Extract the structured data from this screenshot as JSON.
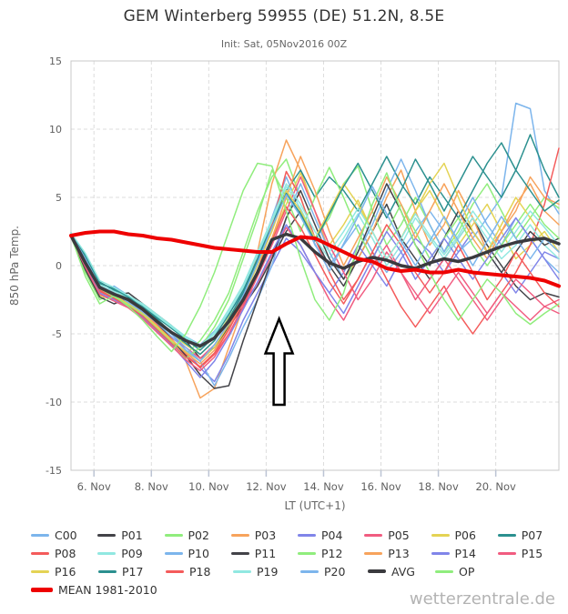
{
  "header": {
    "title": "GEM Winterberg 59955 (DE) 51.2N, 8.5E",
    "subtitle": "Init: Sat, 05Nov2016 00Z"
  },
  "watermark": "wetterzentrale.de",
  "legend": {
    "rows": [
      [
        "C00",
        "P01",
        "P02",
        "P03",
        "P04",
        "P05",
        "P06",
        "P07"
      ],
      [
        "P08",
        "P09",
        "P10",
        "P11",
        "P12",
        "P13",
        "P14",
        "P15"
      ],
      [
        "P16",
        "P17",
        "P18",
        "P19",
        "P20",
        "AVG",
        "OP"
      ],
      [
        "MEAN 1981-2010"
      ]
    ]
  },
  "chart_data": {
    "type": "line",
    "title": "GEM Winterberg 59955 (DE) 51.2N, 8.5E",
    "subtitle": "Init: Sat, 05Nov2016 00Z",
    "xlabel": "LT (UTC+1)",
    "ylabel": "850 hPa Temp.",
    "ylim": [
      -15,
      15
    ],
    "y_ticks": [
      15,
      10,
      5,
      0,
      -5,
      -10,
      -15
    ],
    "x_ticks": [
      {
        "day": 1,
        "label": "6. Nov"
      },
      {
        "day": 3,
        "label": "8. Nov"
      },
      {
        "day": 5,
        "label": "10. Nov"
      },
      {
        "day": 7,
        "label": "12. Nov"
      },
      {
        "day": 9,
        "label": "14. Nov"
      },
      {
        "day": 11,
        "label": "16. Nov"
      },
      {
        "day": 13,
        "label": "18. Nov"
      },
      {
        "day": 15,
        "label": "20. Nov"
      }
    ],
    "grid": true,
    "legend_position": "bottom",
    "x_days": [
      0.2,
      0.7,
      1.2,
      1.7,
      2.2,
      2.7,
      3.2,
      3.7,
      4.2,
      4.7,
      5.2,
      5.7,
      6.2,
      6.7,
      7.2,
      7.7,
      8.2,
      8.7,
      9.2,
      9.7,
      10.2,
      10.7,
      11.2,
      11.7,
      12.2,
      12.7,
      13.2,
      13.7,
      14.2,
      14.7,
      15.2,
      15.7,
      16.2,
      16.7,
      17.2
    ],
    "annotation": {
      "shape": "up-arrow",
      "x_day": 7.45,
      "tip_temp": -3.9,
      "base_temp": -10.2,
      "fill": "#ffffff",
      "stroke": "#000000"
    },
    "series": [
      {
        "name": "C00",
        "color": "#7cb5ec",
        "width": 1.5,
        "values": [
          2.3,
          0.0,
          -2.0,
          -1.5,
          -2.2,
          -3.0,
          -3.8,
          -4.5,
          -5.2,
          -5.8,
          -4.8,
          -3.5,
          -2.0,
          0.5,
          3.5,
          6.5,
          4.0,
          1.5,
          0.0,
          1.5,
          3.0,
          1.0,
          -0.5,
          1.0,
          2.5,
          4.0,
          2.5,
          1.0,
          2.0,
          3.5,
          5.0,
          11.9,
          11.5,
          5.5,
          3.8
        ]
      },
      {
        "name": "P01",
        "color": "#434348",
        "width": 1.5,
        "values": [
          2.2,
          0.2,
          -1.8,
          -2.2,
          -2.0,
          -2.8,
          -3.6,
          -4.4,
          -5.5,
          -6.8,
          -6.0,
          -4.5,
          -3.0,
          -1.5,
          0.5,
          2.5,
          4.0,
          2.0,
          0.0,
          -1.5,
          0.5,
          2.5,
          4.5,
          2.0,
          0.5,
          -1.0,
          0.5,
          2.0,
          3.5,
          1.5,
          0.0,
          -1.5,
          -2.5,
          -2.0,
          -2.3
        ]
      },
      {
        "name": "P02",
        "color": "#90ed7d",
        "width": 1.5,
        "values": [
          2.1,
          -0.5,
          -2.5,
          -2.0,
          -2.8,
          -3.5,
          -4.5,
          -5.5,
          -6.5,
          -5.5,
          -4.0,
          -2.0,
          1.0,
          4.0,
          6.5,
          7.8,
          5.0,
          2.0,
          3.5,
          6.0,
          7.3,
          4.0,
          1.5,
          3.0,
          5.0,
          3.0,
          1.0,
          2.5,
          4.5,
          6.0,
          4.0,
          2.0,
          3.5,
          5.0,
          4.2
        ]
      },
      {
        "name": "P03",
        "color": "#f7a35c",
        "width": 1.5,
        "values": [
          2.2,
          0.0,
          -2.2,
          -1.8,
          -2.5,
          -3.2,
          -4.2,
          -5.5,
          -7.0,
          -9.7,
          -9.0,
          -6.0,
          -3.0,
          1.0,
          6.0,
          9.2,
          7.0,
          4.0,
          1.0,
          -1.0,
          0.5,
          2.5,
          5.0,
          7.0,
          4.0,
          1.5,
          3.0,
          5.5,
          3.5,
          1.0,
          2.5,
          4.0,
          6.5,
          5.0,
          4.5
        ]
      },
      {
        "name": "P04",
        "color": "#8085e9",
        "width": 1.5,
        "values": [
          2.3,
          0.5,
          -1.5,
          -2.0,
          -2.5,
          -3.0,
          -4.0,
          -5.0,
          -6.2,
          -7.5,
          -8.5,
          -6.5,
          -4.0,
          -2.0,
          0.0,
          2.0,
          1.0,
          -0.5,
          -2.0,
          -0.5,
          1.5,
          0.0,
          -1.5,
          0.5,
          2.0,
          1.0,
          -0.5,
          1.0,
          2.5,
          1.0,
          -0.5,
          -2.0,
          -0.5,
          1.0,
          0.5
        ]
      },
      {
        "name": "P05",
        "color": "#f15c80",
        "width": 1.5,
        "values": [
          2.2,
          0.3,
          -1.7,
          -2.3,
          -2.7,
          -3.3,
          -4.3,
          -5.3,
          -6.0,
          -6.8,
          -5.8,
          -4.3,
          -2.8,
          -1.3,
          0.8,
          2.8,
          1.5,
          -0.5,
          -2.5,
          -4.0,
          -2.0,
          0.0,
          1.5,
          -0.5,
          -2.5,
          -1.0,
          0.5,
          -1.0,
          -2.5,
          -4.0,
          -2.5,
          -1.0,
          -2.0,
          -3.0,
          -2.5
        ]
      },
      {
        "name": "P06",
        "color": "#e4d354",
        "width": 1.5,
        "values": [
          2.1,
          -0.2,
          -2.2,
          -2.5,
          -2.2,
          -3.0,
          -4.0,
          -5.0,
          -5.8,
          -6.5,
          -5.5,
          -3.8,
          -2.2,
          -0.5,
          2.0,
          4.5,
          6.8,
          4.0,
          1.5,
          3.0,
          4.8,
          2.5,
          0.5,
          2.0,
          4.0,
          5.5,
          3.5,
          1.5,
          3.0,
          4.5,
          2.5,
          0.5,
          1.5,
          2.5,
          1.0
        ]
      },
      {
        "name": "P07",
        "color": "#2b908f",
        "width": 1.5,
        "values": [
          2.4,
          0.8,
          -1.2,
          -1.8,
          -2.4,
          -3.0,
          -3.8,
          -4.6,
          -5.4,
          -6.2,
          -5.2,
          -3.6,
          -1.8,
          0.5,
          3.0,
          5.5,
          7.0,
          5.0,
          6.5,
          5.5,
          4.0,
          6.0,
          8.0,
          6.0,
          4.5,
          6.5,
          5.0,
          3.5,
          5.5,
          7.5,
          9.0,
          7.0,
          9.6,
          7.0,
          5.0
        ]
      },
      {
        "name": "P08",
        "color": "#f45b5b",
        "width": 1.5,
        "values": [
          2.2,
          0.1,
          -1.9,
          -2.4,
          -2.9,
          -3.5,
          -4.5,
          -5.5,
          -6.5,
          -7.5,
          -6.5,
          -5.0,
          -3.0,
          -0.5,
          3.0,
          6.9,
          5.0,
          2.0,
          -0.5,
          -2.5,
          -1.0,
          1.0,
          -1.0,
          -3.0,
          -4.5,
          -3.0,
          -1.5,
          -3.5,
          -5.0,
          -3.5,
          -2.0,
          -0.5,
          1.5,
          4.5,
          8.6
        ]
      },
      {
        "name": "P09",
        "color": "#91e8e1",
        "width": 1.5,
        "values": [
          2.3,
          0.6,
          -1.4,
          -1.9,
          -2.3,
          -2.9,
          -3.7,
          -4.5,
          -5.3,
          -6.0,
          -5.0,
          -3.4,
          -1.6,
          0.8,
          3.2,
          5.8,
          4.2,
          2.0,
          0.5,
          2.0,
          3.8,
          2.0,
          0.0,
          1.5,
          3.5,
          2.0,
          0.5,
          2.0,
          3.5,
          2.0,
          0.5,
          1.5,
          3.0,
          1.5,
          0.5
        ]
      },
      {
        "name": "P10",
        "color": "#7cb5ec",
        "width": 1.5,
        "values": [
          2.2,
          0.4,
          -1.6,
          -2.1,
          -2.6,
          -3.2,
          -4.0,
          -5.0,
          -6.0,
          -7.0,
          -8.8,
          -6.8,
          -4.5,
          -2.5,
          0.0,
          3.5,
          6.0,
          3.5,
          1.0,
          -1.0,
          1.0,
          3.0,
          5.5,
          7.8,
          5.5,
          3.0,
          1.0,
          3.0,
          5.0,
          3.0,
          1.5,
          3.5,
          2.0,
          0.5,
          -0.5
        ]
      },
      {
        "name": "P11",
        "color": "#434348",
        "width": 1.5,
        "values": [
          2.1,
          -0.3,
          -2.3,
          -2.8,
          -2.4,
          -3.2,
          -4.2,
          -5.4,
          -6.6,
          -8.0,
          -9.0,
          -8.8,
          -5.5,
          -2.5,
          0.5,
          3.5,
          5.5,
          3.0,
          0.5,
          -1.0,
          1.0,
          3.5,
          6.0,
          4.0,
          1.5,
          0.0,
          2.0,
          4.0,
          2.5,
          1.0,
          -0.5,
          1.0,
          2.5,
          1.5,
          2.0
        ]
      },
      {
        "name": "P12",
        "color": "#90ed7d",
        "width": 1.5,
        "values": [
          2.2,
          0.2,
          -1.8,
          -2.3,
          -2.9,
          -3.6,
          -4.6,
          -5.6,
          -6.8,
          -6.0,
          -4.5,
          -2.5,
          0.5,
          3.5,
          7.0,
          5.0,
          2.5,
          5.0,
          7.2,
          5.0,
          2.5,
          0.5,
          2.5,
          4.5,
          2.5,
          0.5,
          2.0,
          3.5,
          1.5,
          0.0,
          1.5,
          3.0,
          4.5,
          3.0,
          2.0
        ]
      },
      {
        "name": "P13",
        "color": "#f7a35c",
        "width": 1.5,
        "values": [
          2.3,
          0.5,
          -1.5,
          -2.0,
          -2.6,
          -3.4,
          -4.4,
          -5.4,
          -6.4,
          -7.2,
          -6.2,
          -4.6,
          -2.6,
          -0.6,
          2.0,
          5.0,
          8.0,
          5.5,
          2.5,
          0.0,
          2.0,
          4.0,
          6.5,
          4.5,
          2.0,
          4.0,
          6.0,
          4.0,
          2.0,
          0.5,
          2.5,
          4.5,
          6.0,
          4.0,
          3.0
        ]
      },
      {
        "name": "P14",
        "color": "#8085e9",
        "width": 1.5,
        "values": [
          2.2,
          0.0,
          -2.0,
          -2.5,
          -3.0,
          -3.8,
          -4.8,
          -5.8,
          -7.0,
          -8.2,
          -7.0,
          -5.2,
          -3.2,
          -1.2,
          1.0,
          3.0,
          1.5,
          -0.5,
          -2.0,
          -3.5,
          -1.5,
          0.5,
          2.5,
          1.0,
          -1.0,
          0.5,
          2.0,
          0.5,
          -1.0,
          0.5,
          2.0,
          3.5,
          2.0,
          0.5,
          -1.0
        ]
      },
      {
        "name": "P15",
        "color": "#f15c80",
        "width": 1.5,
        "values": [
          2.1,
          -0.1,
          -2.1,
          -2.6,
          -3.1,
          -3.9,
          -4.9,
          -5.9,
          -6.9,
          -7.7,
          -6.7,
          -5.0,
          -3.0,
          -0.8,
          1.5,
          4.0,
          6.5,
          4.0,
          1.5,
          -0.5,
          -2.5,
          -1.0,
          1.0,
          -0.5,
          -2.0,
          -3.5,
          -2.0,
          -0.5,
          -2.0,
          -3.5,
          -2.0,
          -3.0,
          -4.0,
          -3.0,
          -3.5
        ]
      },
      {
        "name": "P16",
        "color": "#e4d354",
        "width": 1.5,
        "values": [
          2.2,
          0.3,
          -1.7,
          -2.2,
          -2.8,
          -3.5,
          -4.5,
          -5.5,
          -6.3,
          -7.0,
          -6.0,
          -4.3,
          -2.3,
          0.0,
          2.5,
          5.5,
          4.0,
          2.0,
          4.0,
          6.0,
          4.5,
          2.5,
          0.5,
          2.0,
          4.0,
          6.0,
          7.5,
          5.0,
          2.5,
          1.0,
          3.0,
          5.0,
          3.5,
          2.0,
          1.0
        ]
      },
      {
        "name": "P17",
        "color": "#2b908f",
        "width": 1.5,
        "values": [
          2.3,
          0.7,
          -1.3,
          -1.7,
          -2.3,
          -3.1,
          -3.9,
          -4.9,
          -5.7,
          -6.5,
          -5.5,
          -3.9,
          -2.0,
          0.3,
          2.8,
          5.3,
          3.8,
          1.8,
          3.8,
          5.8,
          7.5,
          5.5,
          3.5,
          5.5,
          7.8,
          6.0,
          4.0,
          6.0,
          8.0,
          6.5,
          5.0,
          7.0,
          5.5,
          4.0,
          4.8
        ]
      },
      {
        "name": "P18",
        "color": "#f45b5b",
        "width": 1.5,
        "values": [
          2.2,
          0.2,
          -1.8,
          -2.4,
          -3.0,
          -3.7,
          -4.7,
          -5.7,
          -6.7,
          -7.4,
          -6.4,
          -4.7,
          -2.7,
          -0.7,
          1.8,
          4.3,
          2.8,
          0.8,
          -1.2,
          -2.8,
          -1.0,
          1.0,
          3.0,
          1.5,
          -0.5,
          -2.0,
          -0.5,
          1.5,
          -0.5,
          -2.5,
          -1.0,
          1.0,
          -0.5,
          -2.0,
          -3.0
        ]
      },
      {
        "name": "P19",
        "color": "#91e8e1",
        "width": 1.5,
        "values": [
          2.4,
          0.9,
          -1.1,
          -1.6,
          -2.2,
          -2.8,
          -3.6,
          -4.4,
          -5.2,
          -5.9,
          -4.9,
          -3.2,
          -1.4,
          1.0,
          3.4,
          6.0,
          4.5,
          2.5,
          1.0,
          2.5,
          4.2,
          2.5,
          0.5,
          2.0,
          3.8,
          2.2,
          0.8,
          2.2,
          4.0,
          2.5,
          1.0,
          2.5,
          4.0,
          2.8,
          1.5
        ]
      },
      {
        "name": "P20",
        "color": "#7cb5ec",
        "width": 1.5,
        "values": [
          2.3,
          0.5,
          -1.5,
          -2.0,
          -2.7,
          -3.4,
          -4.2,
          -5.2,
          -6.2,
          -7.0,
          -5.8,
          -4.2,
          -2.2,
          0.2,
          2.8,
          5.2,
          3.6,
          1.6,
          -0.4,
          1.6,
          3.6,
          5.8,
          3.8,
          1.8,
          0.0,
          1.8,
          3.6,
          1.8,
          0.0,
          1.8,
          3.6,
          2.0,
          0.5,
          2.0,
          1.0
        ]
      },
      {
        "name": "OP",
        "color": "#90ed7d",
        "width": 1.5,
        "values": [
          2.2,
          -0.8,
          -2.8,
          -2.2,
          -3.0,
          -4.0,
          -5.2,
          -6.3,
          -5.0,
          -3.0,
          -0.5,
          2.5,
          5.5,
          7.5,
          7.3,
          4.0,
          0.5,
          -2.5,
          -4.0,
          -2.0,
          1.5,
          4.5,
          6.8,
          4.0,
          1.5,
          -0.5,
          -2.5,
          -4.0,
          -2.5,
          -1.0,
          -2.0,
          -3.5,
          -4.3,
          -3.5,
          -2.8
        ]
      },
      {
        "name": "AVG",
        "color": "#3a3a3e",
        "width": 3.5,
        "values": [
          2.2,
          0.2,
          -1.6,
          -2.1,
          -2.5,
          -3.2,
          -4.1,
          -4.9,
          -5.5,
          -5.9,
          -5.3,
          -4.1,
          -2.5,
          -0.5,
          1.9,
          2.3,
          2.0,
          1.0,
          0.2,
          -0.2,
          0.3,
          0.6,
          0.4,
          0.0,
          -0.2,
          0.2,
          0.5,
          0.3,
          0.6,
          1.0,
          1.4,
          1.7,
          1.9,
          2.0,
          1.6
        ]
      },
      {
        "name": "MEAN 1981-2010",
        "color": "#ee0000",
        "width": 4,
        "values": [
          2.2,
          2.4,
          2.5,
          2.5,
          2.3,
          2.2,
          2.0,
          1.9,
          1.7,
          1.5,
          1.3,
          1.2,
          1.1,
          1.0,
          1.0,
          1.6,
          2.1,
          2.0,
          1.5,
          1.0,
          0.5,
          0.3,
          -0.2,
          -0.4,
          -0.3,
          -0.5,
          -0.5,
          -0.3,
          -0.5,
          -0.6,
          -0.7,
          -0.8,
          -0.9,
          -1.1,
          -1.5
        ]
      }
    ]
  }
}
